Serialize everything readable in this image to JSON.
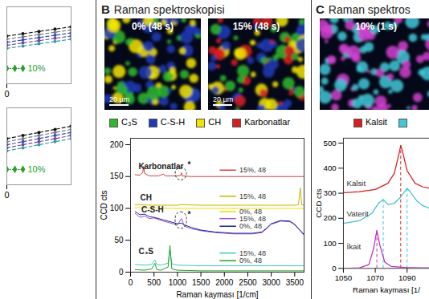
{
  "panels": [
    {
      "letter": "B",
      "title": "Raman spektroskopisi",
      "images": [
        {
          "label": "0% (48 s)",
          "scale_bar": "20 µm",
          "colors": [
            "#2db82d",
            "#1f3ab8",
            "#f2e600"
          ]
        },
        {
          "label": "15% (48 s)",
          "scale_bar": "20 µm",
          "colors": [
            "#2db82d",
            "#1f3ab8",
            "#f2e600",
            "#d81e1e"
          ]
        }
      ],
      "legend_items": [
        {
          "name": "C₃S",
          "color": "#2db82d"
        },
        {
          "name": "C-S-H",
          "color": "#1f3ab8"
        },
        {
          "name": "CH",
          "color": "#f2e600"
        },
        {
          "name": "Karbonatlar",
          "color": "#d81e1e"
        }
      ]
    },
    {
      "letter": "C",
      "title": "Raman spektros",
      "images": [
        {
          "label": "10% (1 s)",
          "colors": [
            "#d040d0",
            "#40c8d8"
          ]
        }
      ],
      "legend_items": [
        {
          "name": "Kalsit",
          "color": "#d81e1e"
        },
        {
          "color": "#40c8d8"
        }
      ]
    }
  ],
  "chart_data": [
    {
      "type": "line",
      "xlim": [
        0,
        48
      ],
      "xticks": [
        0
      ],
      "ylim": [
        0,
        100
      ],
      "tick_labels": "x",
      "series": [
        {
          "color": "#111111",
          "line_style": "dashed",
          "marker": "circle",
          "x": [
            0,
            12,
            24,
            36,
            48
          ],
          "values": [
            62,
            65,
            68,
            71,
            74
          ],
          "errors": [
            null,
            null,
            null,
            null,
            6
          ]
        },
        {
          "color": "#777777",
          "line_style": "dashed",
          "marker": "circle",
          "x": [
            0,
            12,
            24,
            36,
            48
          ],
          "values": [
            58,
            61,
            64,
            67,
            70
          ],
          "errors": [
            null,
            null,
            null,
            null,
            6
          ]
        },
        {
          "color": "#3050c0",
          "line_style": "dashed",
          "marker": "circle",
          "x": [
            0,
            12,
            24,
            36,
            48
          ],
          "values": [
            54,
            57,
            60,
            63,
            66
          ],
          "errors": [
            null,
            null,
            null,
            null,
            6
          ]
        },
        {
          "color": "#8040a0",
          "line_style": "dashed",
          "marker": "circle",
          "x": [
            0,
            12,
            24,
            36,
            48
          ],
          "values": [
            50,
            53,
            56,
            59,
            62
          ],
          "errors": [
            null,
            null,
            null,
            null,
            6
          ]
        },
        {
          "color": "#30a0a0",
          "line_style": "dashed",
          "marker": "circle",
          "x": [
            0,
            12,
            24,
            36,
            48
          ],
          "values": [
            46,
            49,
            52,
            55,
            58
          ],
          "errors": [
            null,
            null,
            null,
            null,
            6
          ]
        },
        {
          "name": "10%",
          "color": "#2aa02a",
          "line_style": "dotted",
          "marker": "diamond",
          "x": [
            0,
            6,
            12
          ],
          "values": [
            20,
            20,
            20
          ]
        }
      ]
    },
    {
      "type": "line",
      "xlim": [
        0,
        48
      ],
      "xticks": [
        0
      ],
      "ylim": [
        0,
        100
      ],
      "tick_labels": "x",
      "series": [
        {
          "color": "#111111",
          "line_style": "dashed",
          "marker": "circle",
          "x": [
            0,
            12,
            24,
            36,
            48
          ],
          "values": [
            60,
            64,
            68,
            72,
            76
          ],
          "errors": [
            null,
            null,
            null,
            null,
            7
          ]
        },
        {
          "color": "#777777",
          "line_style": "dashed",
          "marker": "circle",
          "x": [
            0,
            12,
            24,
            36,
            48
          ],
          "values": [
            56,
            60,
            64,
            68,
            72
          ],
          "errors": [
            null,
            null,
            null,
            null,
            7
          ]
        },
        {
          "color": "#3050c0",
          "line_style": "dashed",
          "marker": "circle",
          "x": [
            0,
            12,
            24,
            36,
            48
          ],
          "values": [
            52,
            56,
            60,
            64,
            68
          ],
          "errors": [
            null,
            null,
            null,
            null,
            7
          ]
        },
        {
          "color": "#8040a0",
          "line_style": "dashed",
          "marker": "circle",
          "x": [
            0,
            12,
            24,
            36,
            48
          ],
          "values": [
            48,
            52,
            56,
            60,
            64
          ],
          "errors": [
            null,
            null,
            null,
            null,
            7
          ]
        },
        {
          "color": "#30a0a0",
          "line_style": "dashed",
          "marker": "circle",
          "x": [
            0,
            12,
            24,
            36,
            48
          ],
          "values": [
            44,
            48,
            52,
            56,
            60
          ],
          "errors": [
            null,
            null,
            null,
            null,
            7
          ]
        },
        {
          "name": "10%",
          "color": "#2aa02a",
          "line_style": "dotted",
          "marker": "diamond",
          "x": [
            0,
            6,
            12
          ],
          "values": [
            20,
            20,
            20
          ]
        }
      ]
    },
    {
      "type": "line",
      "xlabel": "Raman kayması [1/cm]",
      "ylabel": "CCD cts",
      "xlim": [
        0,
        3700
      ],
      "xticks": [
        0,
        500,
        1000,
        1500,
        2000,
        2500,
        3000,
        3500
      ],
      "ylim": [
        0,
        210
      ],
      "yticks": [
        0,
        50,
        100,
        150,
        200
      ],
      "annotations": [
        {
          "text": "Karbonatlar"
        },
        {
          "text": "CH"
        },
        {
          "text": "C-S-H"
        },
        {
          "text": "C₃S"
        },
        {
          "text": "*"
        },
        {
          "text": "*"
        }
      ],
      "series": [
        {
          "name": "15%, 48",
          "color": "#d44040",
          "x": [
            100,
            200,
            260,
            280,
            300,
            400,
            600,
            700,
            720,
            760,
            1000,
            1070,
            1085,
            1100,
            1300,
            1600,
            2000,
            2500,
            3000,
            3500,
            3700
          ],
          "values": [
            153,
            152,
            156,
            166,
            155,
            151,
            151,
            154,
            152,
            151,
            151,
            152,
            156,
            151,
            150,
            150,
            150,
            150,
            150,
            150,
            150
          ]
        },
        {
          "name": "15%, 48",
          "color": "#c8b400",
          "x": [
            100,
            500,
            1000,
            1085,
            1500,
            2000,
            2500,
            3000,
            3500,
            3580,
            3620,
            3650,
            3700
          ],
          "values": [
            106,
            105,
            105,
            106,
            105,
            105,
            105,
            105,
            105,
            106,
            132,
            106,
            105
          ]
        },
        {
          "name": "0%, 48",
          "color": "#ece000",
          "x": [
            100,
            1000,
            2000,
            3000,
            3700
          ],
          "values": [
            101,
            100,
            100,
            100,
            100
          ]
        },
        {
          "name": "15%, 48",
          "color": "#a050d0",
          "x": [
            100,
            200,
            300,
            400,
            500,
            700,
            900,
            1000,
            1085,
            1150,
            1300,
            1500,
            1800,
            2200,
            2600,
            2800,
            2900,
            3000,
            3200,
            3400,
            3500,
            3600,
            3700
          ],
          "values": [
            92,
            86,
            88,
            84,
            85,
            80,
            76,
            74,
            84,
            72,
            68,
            65,
            62,
            60,
            60,
            62,
            68,
            75,
            80,
            79,
            74,
            66,
            58
          ]
        },
        {
          "name": "0%, 48",
          "color": "#1a2890",
          "x": [
            100,
            200,
            300,
            400,
            500,
            700,
            900,
            1000,
            1085,
            1150,
            1300,
            1500,
            1800,
            2200,
            2600,
            2800,
            2900,
            3000,
            3200,
            3400,
            3500,
            3600,
            3700
          ],
          "values": [
            95,
            90,
            91,
            87,
            86,
            82,
            78,
            76,
            77,
            74,
            70,
            66,
            63,
            61,
            61,
            63,
            69,
            76,
            81,
            80,
            75,
            67,
            59
          ]
        },
        {
          "name": "15%, 48",
          "color": "#40c8c0",
          "x": [
            100,
            300,
            450,
            520,
            560,
            650,
            800,
            840,
            880,
            1000,
            1500,
            2000,
            3000,
            3700
          ],
          "values": [
            12,
            11,
            12,
            19,
            12,
            11,
            14,
            34,
            13,
            11,
            10,
            10,
            10,
            10
          ]
        },
        {
          "name": "0%, 48",
          "color": "#22a022",
          "x": [
            100,
            300,
            450,
            520,
            560,
            650,
            800,
            840,
            880,
            1000,
            1500,
            2000,
            3000,
            3700
          ],
          "values": [
            4,
            3,
            5,
            14,
            4,
            3,
            8,
            42,
            5,
            3,
            2,
            2,
            2,
            2
          ]
        }
      ]
    },
    {
      "type": "line",
      "xlabel": "Raman kayması [1/",
      "ylabel": "CCD cts",
      "xlim": [
        1050,
        1104
      ],
      "xticks": [
        1050,
        1070,
        1090
      ],
      "ylim": [
        0,
        520
      ],
      "yticks": [
        0,
        100,
        200,
        300,
        400,
        500
      ],
      "series": [
        {
          "name": "Kalsit",
          "color": "#d81e1e",
          "x": [
            1050,
            1060,
            1070,
            1078,
            1082,
            1085,
            1086,
            1087,
            1090,
            1095,
            1100,
            1104
          ],
          "values": [
            302,
            306,
            315,
            340,
            380,
            460,
            490,
            470,
            390,
            340,
            325,
            320
          ]
        },
        {
          "name": "Vaterit",
          "color": "#40c0d0",
          "x": [
            1050,
            1060,
            1068,
            1072,
            1075,
            1078,
            1082,
            1086,
            1090,
            1092,
            1096,
            1100,
            1104
          ],
          "values": [
            180,
            190,
            220,
            260,
            275,
            255,
            260,
            285,
            320,
            305,
            270,
            250,
            240
          ]
        },
        {
          "name": "İkait",
          "color": "#c030c0",
          "x": [
            1050,
            1060,
            1066,
            1069,
            1071,
            1073,
            1076,
            1080,
            1090,
            1100,
            1104
          ],
          "values": [
            0,
            2,
            15,
            80,
            152,
            90,
            25,
            8,
            3,
            2,
            2
          ]
        }
      ],
      "peak_lines": [
        {
          "x": 1071,
          "y": 152,
          "color": "#c030c0"
        },
        {
          "x": 1075,
          "y": 275,
          "color": "#40c0d0"
        },
        {
          "x": 1086,
          "y": 490,
          "color": "#d81e1e"
        },
        {
          "x": 1090,
          "y": 320,
          "color": "#40c0d0"
        }
      ]
    }
  ]
}
